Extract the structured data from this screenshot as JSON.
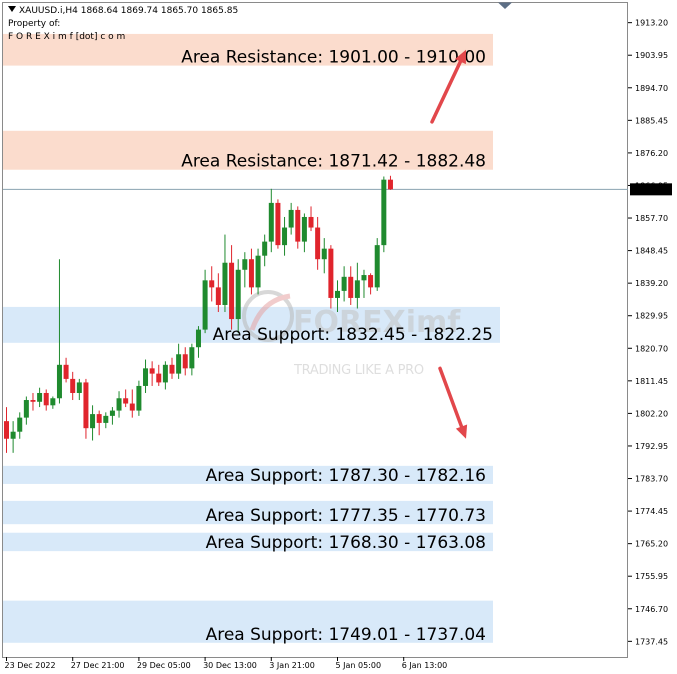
{
  "header": {
    "symbol_line": "XAUUSD.i,H4  1868.64 1869.74 1865.70 1865.85",
    "property_line": "Property of:",
    "brand_line": "F O R E X i m f [dot] c o m"
  },
  "watermark": {
    "brand": "FOREXimf",
    "tagline": "TRADING LIKE A PRO"
  },
  "colors": {
    "resistance_zone": "#fbdccd",
    "support_zone": "#d8e9f9",
    "bull_candle": "#1f8a2e",
    "bear_candle": "#e0242c",
    "arrow": "#e2474b",
    "price_line": "#8aa3b0",
    "current_price_box": "#000000"
  },
  "chart_data": {
    "type": "candlestick",
    "symbol": "XAUUSD.i",
    "timeframe": "H4",
    "ohlc_header": {
      "open": 1868.64,
      "high": 1869.74,
      "low": 1865.7,
      "close": 1865.85
    },
    "ylim": [
      1733.0,
      1918.5
    ],
    "y_ticks": [
      "1913.20",
      "1903.95",
      "1894.70",
      "1885.45",
      "1876.20",
      "1866.95",
      "1857.70",
      "1848.45",
      "1839.20",
      "1829.95",
      "1820.70",
      "1811.45",
      "1802.20",
      "1792.95",
      "1783.70",
      "1774.45",
      "1765.20",
      "1755.95",
      "1746.70",
      "1737.45"
    ],
    "x_tick_labels": [
      {
        "label": "23 Dec 2022",
        "index": 0
      },
      {
        "label": "27 Dec 21:00",
        "index": 10
      },
      {
        "label": "29 Dec 05:00",
        "index": 20
      },
      {
        "label": "30 Dec 13:00",
        "index": 30
      },
      {
        "label": "3 Jan 21:00",
        "index": 40
      },
      {
        "label": "5 Jan 05:00",
        "index": 50
      },
      {
        "label": "6 Jan 13:00",
        "index": 60
      }
    ],
    "current_price": "1865.85",
    "candles": [
      {
        "o": 1800.0,
        "h": 1804.0,
        "l": 1791.0,
        "c": 1795.0
      },
      {
        "o": 1795.0,
        "h": 1800.0,
        "l": 1791.0,
        "c": 1797.0
      },
      {
        "o": 1797.0,
        "h": 1802.5,
        "l": 1795.0,
        "c": 1801.0
      },
      {
        "o": 1801.0,
        "h": 1807.0,
        "l": 1799.0,
        "c": 1806.0
      },
      {
        "o": 1806.0,
        "h": 1808.0,
        "l": 1803.0,
        "c": 1805.5
      },
      {
        "o": 1805.5,
        "h": 1809.5,
        "l": 1804.0,
        "c": 1808.0
      },
      {
        "o": 1808.0,
        "h": 1809.0,
        "l": 1803.0,
        "c": 1804.5
      },
      {
        "o": 1804.5,
        "h": 1807.0,
        "l": 1803.5,
        "c": 1806.5
      },
      {
        "o": 1806.5,
        "h": 1846.0,
        "l": 1805.0,
        "c": 1816.0
      },
      {
        "o": 1816.0,
        "h": 1818.0,
        "l": 1811.0,
        "c": 1812.0
      },
      {
        "o": 1812.0,
        "h": 1814.0,
        "l": 1806.0,
        "c": 1808.0
      },
      {
        "o": 1808.0,
        "h": 1812.0,
        "l": 1806.0,
        "c": 1811.0
      },
      {
        "o": 1811.0,
        "h": 1812.0,
        "l": 1795.0,
        "c": 1798.0
      },
      {
        "o": 1798.0,
        "h": 1804.5,
        "l": 1794.5,
        "c": 1802.0
      },
      {
        "o": 1802.0,
        "h": 1803.0,
        "l": 1796.0,
        "c": 1799.5
      },
      {
        "o": 1799.5,
        "h": 1802.5,
        "l": 1798.0,
        "c": 1801.5
      },
      {
        "o": 1801.5,
        "h": 1804.0,
        "l": 1799.0,
        "c": 1803.0
      },
      {
        "o": 1803.0,
        "h": 1808.5,
        "l": 1801.0,
        "c": 1806.5
      },
      {
        "o": 1806.5,
        "h": 1809.0,
        "l": 1804.0,
        "c": 1805.0
      },
      {
        "o": 1805.0,
        "h": 1809.0,
        "l": 1801.0,
        "c": 1803.0
      },
      {
        "o": 1803.0,
        "h": 1811.5,
        "l": 1801.5,
        "c": 1810.0
      },
      {
        "o": 1810.0,
        "h": 1817.5,
        "l": 1808.0,
        "c": 1815.0
      },
      {
        "o": 1815.0,
        "h": 1817.0,
        "l": 1810.0,
        "c": 1813.5
      },
      {
        "o": 1813.5,
        "h": 1816.0,
        "l": 1810.0,
        "c": 1811.0
      },
      {
        "o": 1811.0,
        "h": 1817.0,
        "l": 1809.0,
        "c": 1816.0
      },
      {
        "o": 1816.0,
        "h": 1818.0,
        "l": 1812.0,
        "c": 1813.5
      },
      {
        "o": 1813.5,
        "h": 1822.0,
        "l": 1812.0,
        "c": 1819.0
      },
      {
        "o": 1819.0,
        "h": 1821.0,
        "l": 1813.0,
        "c": 1815.0
      },
      {
        "o": 1815.0,
        "h": 1822.0,
        "l": 1813.0,
        "c": 1821.0
      },
      {
        "o": 1821.0,
        "h": 1827.0,
        "l": 1818.0,
        "c": 1826.0
      },
      {
        "o": 1826.0,
        "h": 1843.0,
        "l": 1825.0,
        "c": 1840.0
      },
      {
        "o": 1840.0,
        "h": 1844.0,
        "l": 1834.0,
        "c": 1838.0
      },
      {
        "o": 1838.0,
        "h": 1842.0,
        "l": 1831.0,
        "c": 1833.0
      },
      {
        "o": 1833.0,
        "h": 1853.0,
        "l": 1831.0,
        "c": 1845.0
      },
      {
        "o": 1845.0,
        "h": 1850.0,
        "l": 1826.0,
        "c": 1829.0
      },
      {
        "o": 1829.0,
        "h": 1846.0,
        "l": 1825.0,
        "c": 1843.0
      },
      {
        "o": 1843.0,
        "h": 1848.0,
        "l": 1838.0,
        "c": 1846.0
      },
      {
        "o": 1846.0,
        "h": 1849.0,
        "l": 1836.0,
        "c": 1838.0
      },
      {
        "o": 1838.0,
        "h": 1849.0,
        "l": 1836.0,
        "c": 1847.0
      },
      {
        "o": 1847.0,
        "h": 1853.0,
        "l": 1844.0,
        "c": 1851.0
      },
      {
        "o": 1851.0,
        "h": 1866.0,
        "l": 1848.0,
        "c": 1862.0
      },
      {
        "o": 1862.0,
        "h": 1863.0,
        "l": 1849.0,
        "c": 1850.0
      },
      {
        "o": 1850.0,
        "h": 1858.0,
        "l": 1847.0,
        "c": 1855.0
      },
      {
        "o": 1855.0,
        "h": 1862.0,
        "l": 1853.0,
        "c": 1860.0
      },
      {
        "o": 1860.0,
        "h": 1861.0,
        "l": 1849.0,
        "c": 1851.0
      },
      {
        "o": 1851.0,
        "h": 1859.0,
        "l": 1848.0,
        "c": 1858.0
      },
      {
        "o": 1858.0,
        "h": 1861.0,
        "l": 1854.0,
        "c": 1855.0
      },
      {
        "o": 1855.0,
        "h": 1858.0,
        "l": 1843.0,
        "c": 1846.0
      },
      {
        "o": 1846.0,
        "h": 1852.0,
        "l": 1842.0,
        "c": 1849.0
      },
      {
        "o": 1849.0,
        "h": 1850.0,
        "l": 1832.0,
        "c": 1835.0
      },
      {
        "o": 1835.0,
        "h": 1840.0,
        "l": 1831.0,
        "c": 1837.0
      },
      {
        "o": 1837.0,
        "h": 1844.0,
        "l": 1834.0,
        "c": 1841.0
      },
      {
        "o": 1841.0,
        "h": 1844.0,
        "l": 1833.0,
        "c": 1835.0
      },
      {
        "o": 1835.0,
        "h": 1845.0,
        "l": 1832.0,
        "c": 1840.0
      },
      {
        "o": 1840.0,
        "h": 1843.0,
        "l": 1835.0,
        "c": 1841.5
      },
      {
        "o": 1841.5,
        "h": 1842.0,
        "l": 1836.0,
        "c": 1838.0
      },
      {
        "o": 1838.0,
        "h": 1852.0,
        "l": 1837.0,
        "c": 1850.0
      },
      {
        "o": 1850.0,
        "h": 1869.5,
        "l": 1848.0,
        "c": 1868.6
      },
      {
        "o": 1868.6,
        "h": 1869.7,
        "l": 1865.7,
        "c": 1865.85
      }
    ],
    "zones": [
      {
        "kind": "resistance",
        "label": "Area Resistance: 1901.00 - 1910.00",
        "top": 1910.0,
        "bottom": 1901.0
      },
      {
        "kind": "resistance",
        "label": "Area Resistance: 1871.42 - 1882.48",
        "top": 1882.48,
        "bottom": 1871.42
      },
      {
        "kind": "support",
        "label": "Area Support: 1832.45 - 1822.25",
        "top": 1832.45,
        "bottom": 1822.25
      },
      {
        "kind": "support",
        "label": "Area Support: 1787.30 - 1782.16",
        "top": 1787.3,
        "bottom": 1782.16
      },
      {
        "kind": "support",
        "label": "Area Support: 1777.35 - 1770.73",
        "top": 1777.35,
        "bottom": 1770.73
      },
      {
        "kind": "support",
        "label": "Area Support: 1768.30 - 1763.08",
        "top": 1768.3,
        "bottom": 1763.08
      },
      {
        "kind": "support",
        "label": "Area Support: 1749.01 - 1737.04",
        "top": 1749.01,
        "bottom": 1737.04
      }
    ],
    "arrows": [
      {
        "direction": "up",
        "from_price": 1885.0,
        "to_price": 1905.5
      },
      {
        "direction": "down",
        "from_price": 1815.0,
        "to_price": 1795.0
      }
    ]
  }
}
